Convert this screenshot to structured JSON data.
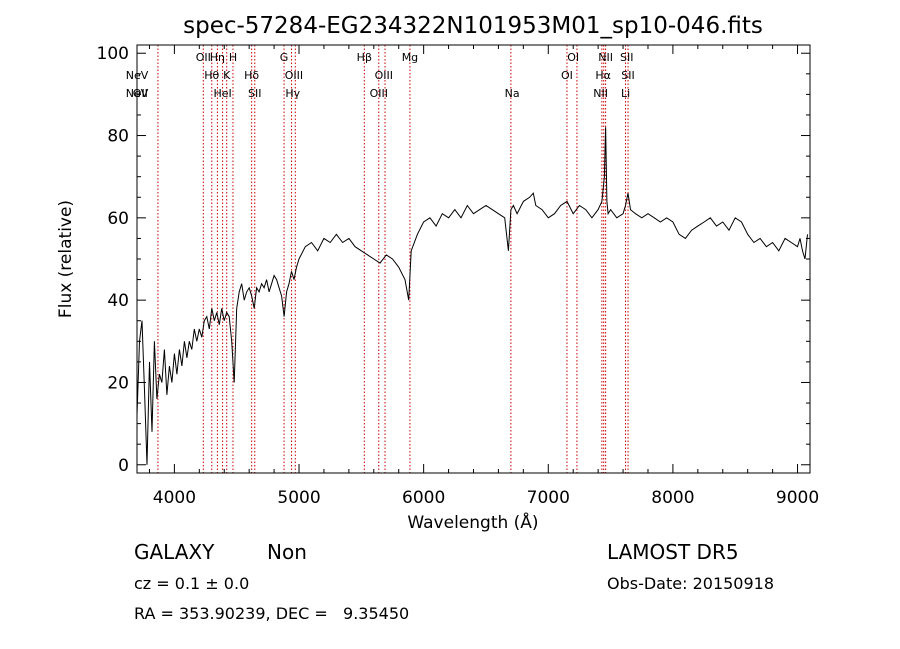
{
  "chart_data": {
    "type": "line",
    "title": "spec-57284-EG234322N101953M01_sp10-046.fits",
    "xlabel": "Wavelength (Å)",
    "ylabel": "Flux (relative)",
    "xlim": [
      3700,
      9100
    ],
    "ylim": [
      -2,
      102
    ],
    "x_ticks": [
      4000,
      5000,
      6000,
      7000,
      8000,
      9000
    ],
    "y_ticks": [
      0,
      20,
      40,
      60,
      80,
      100
    ],
    "grid": false,
    "series": [
      {
        "x": [
          3700,
          3720,
          3740,
          3760,
          3780,
          3800,
          3820,
          3840,
          3860,
          3880,
          3900,
          3920,
          3940,
          3960,
          3980,
          4000,
          4020,
          4040,
          4060,
          4080,
          4100,
          4120,
          4140,
          4160,
          4180,
          4200,
          4220,
          4240,
          4260,
          4280,
          4300,
          4320,
          4340,
          4360,
          4380,
          4400,
          4420,
          4440,
          4460,
          4480,
          4500,
          4520,
          4540,
          4560,
          4580,
          4600,
          4620,
          4640,
          4660,
          4680,
          4700,
          4720,
          4740,
          4760,
          4780,
          4800,
          4820,
          4840,
          4860,
          4880,
          4900,
          4920,
          4940,
          4960,
          4980,
          5000,
          5050,
          5100,
          5150,
          5200,
          5250,
          5300,
          5350,
          5400,
          5450,
          5500,
          5550,
          5600,
          5650,
          5700,
          5750,
          5800,
          5850,
          5880,
          5900,
          5950,
          6000,
          6050,
          6100,
          6150,
          6200,
          6250,
          6300,
          6350,
          6400,
          6450,
          6500,
          6550,
          6600,
          6650,
          6680,
          6700,
          6720,
          6750,
          6800,
          6850,
          6880,
          6900,
          6950,
          7000,
          7050,
          7100,
          7150,
          7200,
          7250,
          7300,
          7350,
          7400,
          7430,
          7450,
          7460,
          7470,
          7480,
          7500,
          7550,
          7600,
          7620,
          7640,
          7660,
          7700,
          7750,
          7800,
          7850,
          7900,
          7950,
          8000,
          8050,
          8100,
          8150,
          8200,
          8250,
          8300,
          8350,
          8400,
          8450,
          8500,
          8550,
          8600,
          8650,
          8700,
          8750,
          8800,
          8850,
          8900,
          8950,
          9000,
          9020,
          9040,
          9060,
          9080
        ],
        "y": [
          12,
          30,
          35,
          18,
          0,
          25,
          8,
          30,
          16,
          22,
          20,
          28,
          17,
          24,
          20,
          27,
          22,
          28,
          24,
          30,
          26,
          30,
          28,
          33,
          30,
          33,
          31,
          35,
          36,
          33,
          38,
          35,
          37,
          34,
          38,
          35,
          37,
          36,
          30,
          20,
          38,
          42,
          44,
          40,
          42,
          43,
          41,
          38,
          43,
          42,
          44,
          43,
          45,
          42,
          44,
          46,
          45,
          43,
          41,
          36,
          42,
          44,
          47,
          45,
          48,
          50,
          53,
          54,
          52,
          55,
          54,
          56,
          54,
          55,
          53,
          52,
          51,
          50,
          49,
          51,
          50,
          48,
          45,
          40,
          52,
          56,
          59,
          60,
          58,
          61,
          60,
          62,
          60,
          63,
          61,
          62,
          63,
          62,
          61,
          60,
          52,
          62,
          63,
          61,
          64,
          65,
          66,
          63,
          62,
          60,
          61,
          63,
          64,
          61,
          63,
          62,
          60,
          62,
          64,
          70,
          82,
          64,
          61,
          62,
          60,
          61,
          63,
          66,
          62,
          61,
          60,
          61,
          60,
          59,
          60,
          59,
          56,
          55,
          57,
          58,
          59,
          60,
          58,
          59,
          57,
          60,
          59,
          56,
          54,
          55,
          53,
          54,
          52,
          55,
          54,
          53,
          55,
          52,
          50,
          56
        ]
      }
    ],
    "annotations": [
      {
        "label": "NeV",
        "x": 3346,
        "row": 3
      },
      {
        "label": "NeV",
        "x": 3426,
        "row": 2
      },
      {
        "label": "OII",
        "x": 3727,
        "row": 3
      },
      {
        "label": "OII",
        "x": 4232,
        "row": 1
      },
      {
        "label": "Hθ",
        "x": 4300,
        "row": 2
      },
      {
        "label": "Hη",
        "x": 4345,
        "row": 1
      },
      {
        "label": "HeI",
        "x": 4387,
        "row": 3
      },
      {
        "label": "K",
        "x": 4420,
        "row": 2
      },
      {
        "label": "H",
        "x": 4470,
        "row": 1
      },
      {
        "label": "Hδ",
        "x": 4620,
        "row": 2
      },
      {
        "label": "SII",
        "x": 4645,
        "row": 3
      },
      {
        "label": "G",
        "x": 4880,
        "row": 1
      },
      {
        "label": "OIII",
        "x": 4959,
        "row": 2
      },
      {
        "label": "Hγ",
        "x": 4950,
        "row": 3
      },
      {
        "label": "Hβ",
        "x": 5524,
        "row": 1
      },
      {
        "label": "OIII",
        "x": 5680,
        "row": 2
      },
      {
        "label": "OIII",
        "x": 5640,
        "row": 3
      },
      {
        "label": "Mg",
        "x": 5890,
        "row": 1
      },
      {
        "label": "Na",
        "x": 6710,
        "row": 3
      },
      {
        "label": "OI",
        "x": 7200,
        "row": 1
      },
      {
        "label": "OI",
        "x": 7150,
        "row": 2
      },
      {
        "label": "NII",
        "x": 7460,
        "row": 1
      },
      {
        "label": "Hα",
        "x": 7440,
        "row": 2
      },
      {
        "label": "NII",
        "x": 7420,
        "row": 3
      },
      {
        "label": "SII",
        "x": 7630,
        "row": 1
      },
      {
        "label": "SII",
        "x": 7640,
        "row": 2
      },
      {
        "label": "Li",
        "x": 7620,
        "row": 3
      }
    ],
    "marker_lines": [
      3868,
      4232,
      4300,
      4345,
      4387,
      4420,
      4470,
      4620,
      4645,
      4880,
      4940,
      4970,
      5524,
      5640,
      5690,
      5890,
      6700,
      7150,
      7230,
      7430,
      7445,
      7460,
      7620,
      7640
    ],
    "line_color": "#000000",
    "marker_color": "#cc0000"
  },
  "info": {
    "class": "GALAXY",
    "subclass": "Non",
    "survey": "LAMOST DR5",
    "cz": "cz = 0.1 ± 0.0",
    "obs_date": "Obs-Date: 20150918",
    "coords": "RA = 353.90239, DEC =   9.35450"
  }
}
